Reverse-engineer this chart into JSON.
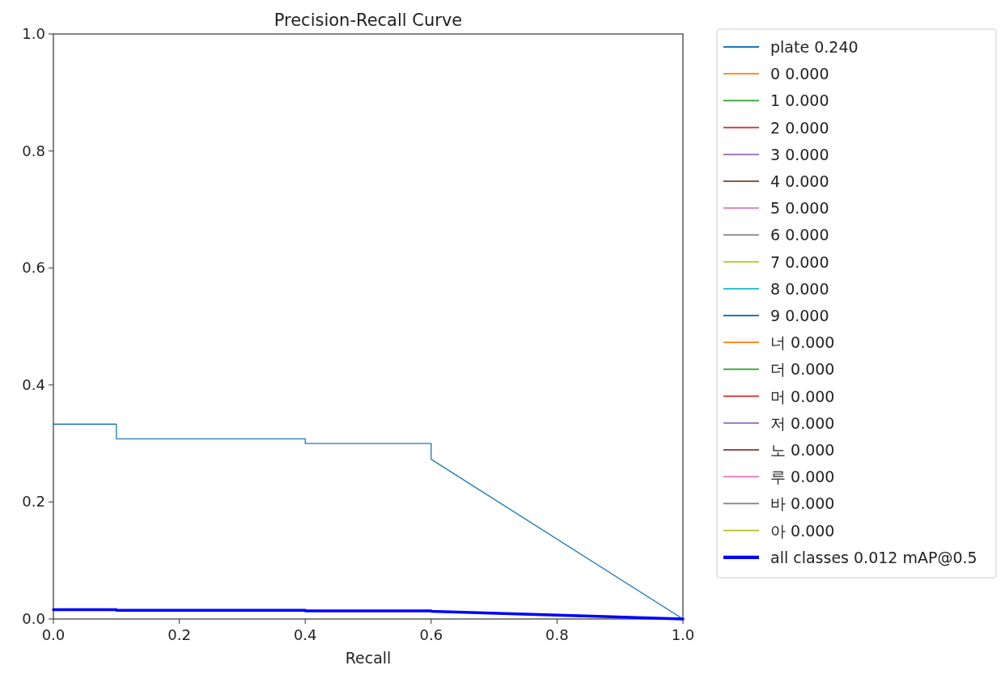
{
  "chart_data": {
    "type": "line",
    "title": "Precision-Recall Curve",
    "xlabel": "Recall",
    "xlim": [
      0,
      1
    ],
    "ylim": [
      0,
      1
    ],
    "xticks": [
      {
        "value": 0,
        "label": "0.0"
      },
      0.2,
      0.4,
      0.6,
      0.8,
      {
        "value": 1,
        "label": "1.0"
      }
    ],
    "yticks": [
      {
        "value": 0,
        "label": "0.0"
      },
      0.2,
      0.4,
      0.6,
      0.8,
      {
        "value": 1,
        "label": "1.0"
      }
    ],
    "legend": "right",
    "grid": false,
    "series": [
      {
        "name": "plate 0.240",
        "color": "#1f77b4",
        "x": [
          0,
          0.1,
          0.1,
          0.4,
          0.4,
          0.6,
          0.6,
          1
        ],
        "values": [
          0.333,
          0.333,
          0.308,
          0.308,
          0.3,
          0.3,
          0.273,
          0
        ]
      },
      {
        "name": "0 0.000",
        "color": "#ff7f0e"
      },
      {
        "name": "1 0.000",
        "color": "#2ca02c"
      },
      {
        "name": "2 0.000",
        "color": "#d62728"
      },
      {
        "name": "3 0.000",
        "color": "#9467bd"
      },
      {
        "name": "4 0.000",
        "color": "#8c564b"
      },
      {
        "name": "5 0.000",
        "color": "#e377c2"
      },
      {
        "name": "6 0.000",
        "color": "#7f7f7f"
      },
      {
        "name": "7 0.000",
        "color": "#bcbd22"
      },
      {
        "name": "8 0.000",
        "color": "#17becf"
      },
      {
        "name": "9 0.000",
        "color": "#1f77b4"
      },
      {
        "name": "너 0.000",
        "color": "#ff7f0e"
      },
      {
        "name": "더 0.000",
        "color": "#2ca02c"
      },
      {
        "name": "머 0.000",
        "color": "#d62728"
      },
      {
        "name": "저 0.000",
        "color": "#9467bd"
      },
      {
        "name": "노 0.000",
        "color": "#8c564b"
      },
      {
        "name": "루 0.000",
        "color": "#e377c2"
      },
      {
        "name": "바 0.000",
        "color": "#7f7f7f"
      },
      {
        "name": "아 0.000",
        "color": "#bcbd22"
      },
      {
        "name": "all classes 0.012 mAP@0.5",
        "color": "#0000ff",
        "x": [
          0,
          0.1,
          0.1,
          0.4,
          0.4,
          0.6,
          0.6,
          1
        ],
        "values": [
          0.016,
          0.016,
          0.015,
          0.015,
          0.014,
          0.014,
          0.013,
          0
        ]
      }
    ]
  }
}
